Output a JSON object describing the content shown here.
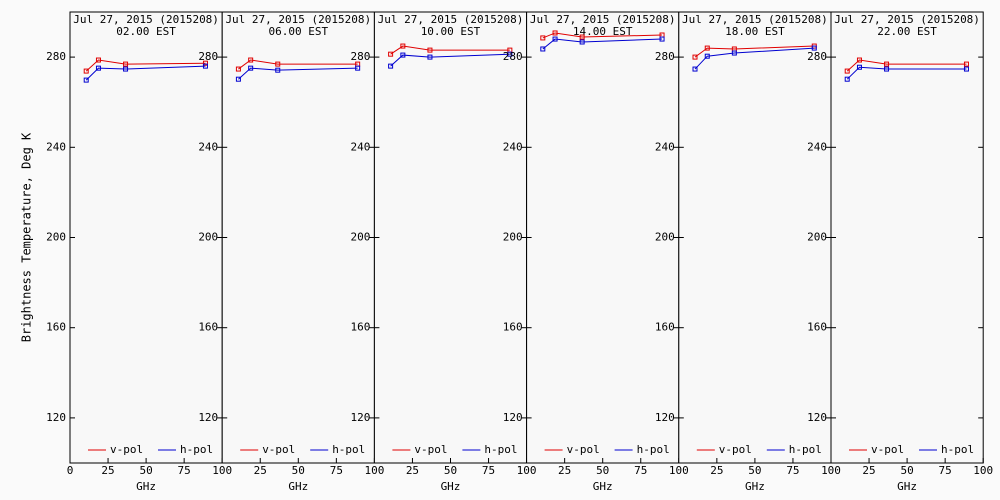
{
  "chart_data": [
    {
      "type": "line",
      "title": "Jul 27, 2015 (2015208)",
      "subtitle": "02.00 EST",
      "ylabel": "Brightness Temperature, Deg K",
      "xlabel": "GHz",
      "x": [
        10.65,
        18.7,
        36.5,
        89
      ],
      "xlim": [
        0,
        100
      ],
      "xticks": [
        0,
        25,
        50,
        75,
        100
      ],
      "ylim": [
        100,
        300
      ],
      "yticks": [
        120,
        160,
        200,
        240,
        280
      ],
      "series": [
        {
          "name": "v-pol",
          "color": "#e00000",
          "values": [
            273.8,
            278.7,
            276.9,
            277.3
          ]
        },
        {
          "name": "h-pol",
          "color": "#0000d0",
          "values": [
            269.8,
            275.1,
            274.7,
            276
          ]
        }
      ]
    },
    {
      "type": "line",
      "title": "Jul 27, 2015 (2015208)",
      "subtitle": "06.00 EST",
      "xlabel": "GHz",
      "x": [
        10.65,
        18.7,
        36.5,
        89
      ],
      "xlim": [
        0,
        100
      ],
      "xticks": [
        25,
        50,
        75,
        100
      ],
      "ylim": [
        100,
        300
      ],
      "yticks": [
        120,
        160,
        200,
        240,
        280
      ],
      "series": [
        {
          "name": "v-pol",
          "color": "#e00000",
          "values": [
            274.7,
            278.7,
            276.9,
            276.9
          ]
        },
        {
          "name": "h-pol",
          "color": "#0000d0",
          "values": [
            270.2,
            275.1,
            274.2,
            275.1
          ]
        }
      ]
    },
    {
      "type": "line",
      "title": "Jul 27, 2015 (2015208)",
      "subtitle": "10.00 EST",
      "xlabel": "GHz",
      "x": [
        10.65,
        18.7,
        36.5,
        89
      ],
      "xlim": [
        0,
        100
      ],
      "xticks": [
        25,
        50,
        75,
        100
      ],
      "ylim": [
        100,
        300
      ],
      "yticks": [
        120,
        160,
        200,
        240,
        280
      ],
      "series": [
        {
          "name": "v-pol",
          "color": "#e00000",
          "values": [
            281.3,
            284.9,
            283.1,
            283.1
          ]
        },
        {
          "name": "h-pol",
          "color": "#0000d0",
          "values": [
            276,
            280.9,
            280,
            281.3
          ]
        }
      ]
    },
    {
      "type": "line",
      "title": "Jul 27, 2015 (2015208)",
      "subtitle": "14.00 EST",
      "xlabel": "GHz",
      "x": [
        10.65,
        18.7,
        36.5,
        89
      ],
      "xlim": [
        0,
        100
      ],
      "xticks": [
        25,
        50,
        75,
        100
      ],
      "ylim": [
        100,
        300
      ],
      "yticks": [
        120,
        160,
        200,
        240,
        280
      ],
      "series": [
        {
          "name": "v-pol",
          "color": "#e00000",
          "values": [
            288.5,
            290.7,
            288.9,
            289.8
          ]
        },
        {
          "name": "h-pol",
          "color": "#0000d0",
          "values": [
            283.6,
            288,
            286.7,
            288
          ]
        }
      ]
    },
    {
      "type": "line",
      "title": "Jul 27, 2015 (2015208)",
      "subtitle": "18.00 EST",
      "xlabel": "GHz",
      "x": [
        10.65,
        18.7,
        36.5,
        89
      ],
      "xlim": [
        0,
        100
      ],
      "xticks": [
        25,
        50,
        75,
        100
      ],
      "ylim": [
        100,
        300
      ],
      "yticks": [
        120,
        160,
        200,
        240,
        280
      ],
      "series": [
        {
          "name": "v-pol",
          "color": "#e00000",
          "values": [
            280,
            284,
            283.6,
            284.9
          ]
        },
        {
          "name": "h-pol",
          "color": "#0000d0",
          "values": [
            274.7,
            280.4,
            281.8,
            284
          ]
        }
      ]
    },
    {
      "type": "line",
      "title": "Jul 27, 2015 (2015208)",
      "subtitle": "22.00 EST",
      "xlabel": "GHz",
      "x": [
        10.65,
        18.7,
        36.5,
        89
      ],
      "xlim": [
        0,
        100
      ],
      "xticks": [
        25,
        50,
        75,
        100
      ],
      "ylim": [
        100,
        300
      ],
      "yticks": [
        120,
        160,
        200,
        240,
        280
      ],
      "series": [
        {
          "name": "v-pol",
          "color": "#e00000",
          "values": [
            273.8,
            278.7,
            276.9,
            276.9
          ]
        },
        {
          "name": "h-pol",
          "color": "#0000d0",
          "values": [
            270.2,
            275.5,
            274.7,
            274.7
          ]
        }
      ]
    }
  ]
}
